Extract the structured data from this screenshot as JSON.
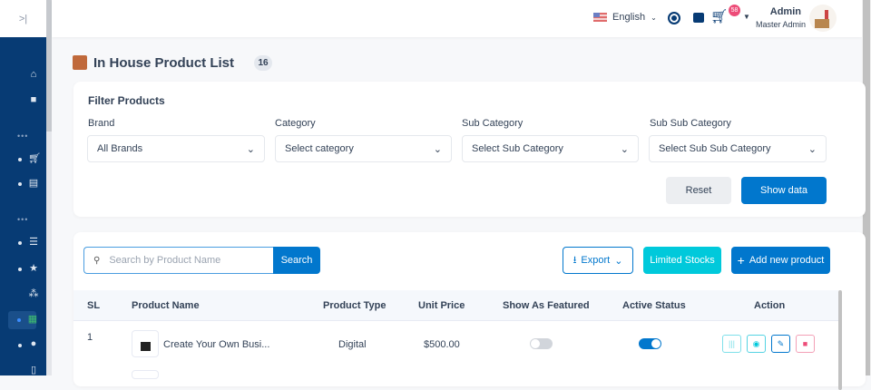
{
  "sidebar": {
    "toggle": ">|",
    "icons": [
      "home-icon",
      "bag-icon",
      "cart-icon",
      "document-icon",
      "filter-icon",
      "star-icon",
      "sitemap-icon",
      "store-icon",
      "support-icon",
      "clipboard-icon"
    ],
    "sep": "•••"
  },
  "header": {
    "language": "English",
    "cart_count": "58",
    "user_name": "Admin",
    "user_role": "Master Admin"
  },
  "page": {
    "title": "In House Product List",
    "count": "16"
  },
  "filter": {
    "title": "Filter Products",
    "brand_label": "Brand",
    "brand_value": "All Brands",
    "category_label": "Category",
    "category_value": "Select category",
    "sub_category_label": "Sub Category",
    "sub_category_value": "Select Sub Category",
    "sub_sub_category_label": "Sub Sub Category",
    "sub_sub_category_value": "Select Sub Sub Category",
    "reset": "Reset",
    "show": "Show data"
  },
  "toolbar": {
    "search_placeholder": "Search by Product Name",
    "search": "Search",
    "export": "Export",
    "limited": "Limited Stocks",
    "add": "Add new product"
  },
  "table": {
    "headers": [
      "SL",
      "Product Name",
      "Product Type",
      "Unit Price",
      "Show As Featured",
      "Active Status",
      "Action"
    ],
    "rows": [
      {
        "sl": "1",
        "name": "Create Your Own Busi...",
        "type": "Digital",
        "price": "$500.00",
        "featured": false,
        "active": true
      }
    ]
  },
  "colors": {
    "sidebar": "#073b74",
    "primary": "#0177cd",
    "cyan": "#00c9db",
    "danger": "#ed4c78"
  }
}
